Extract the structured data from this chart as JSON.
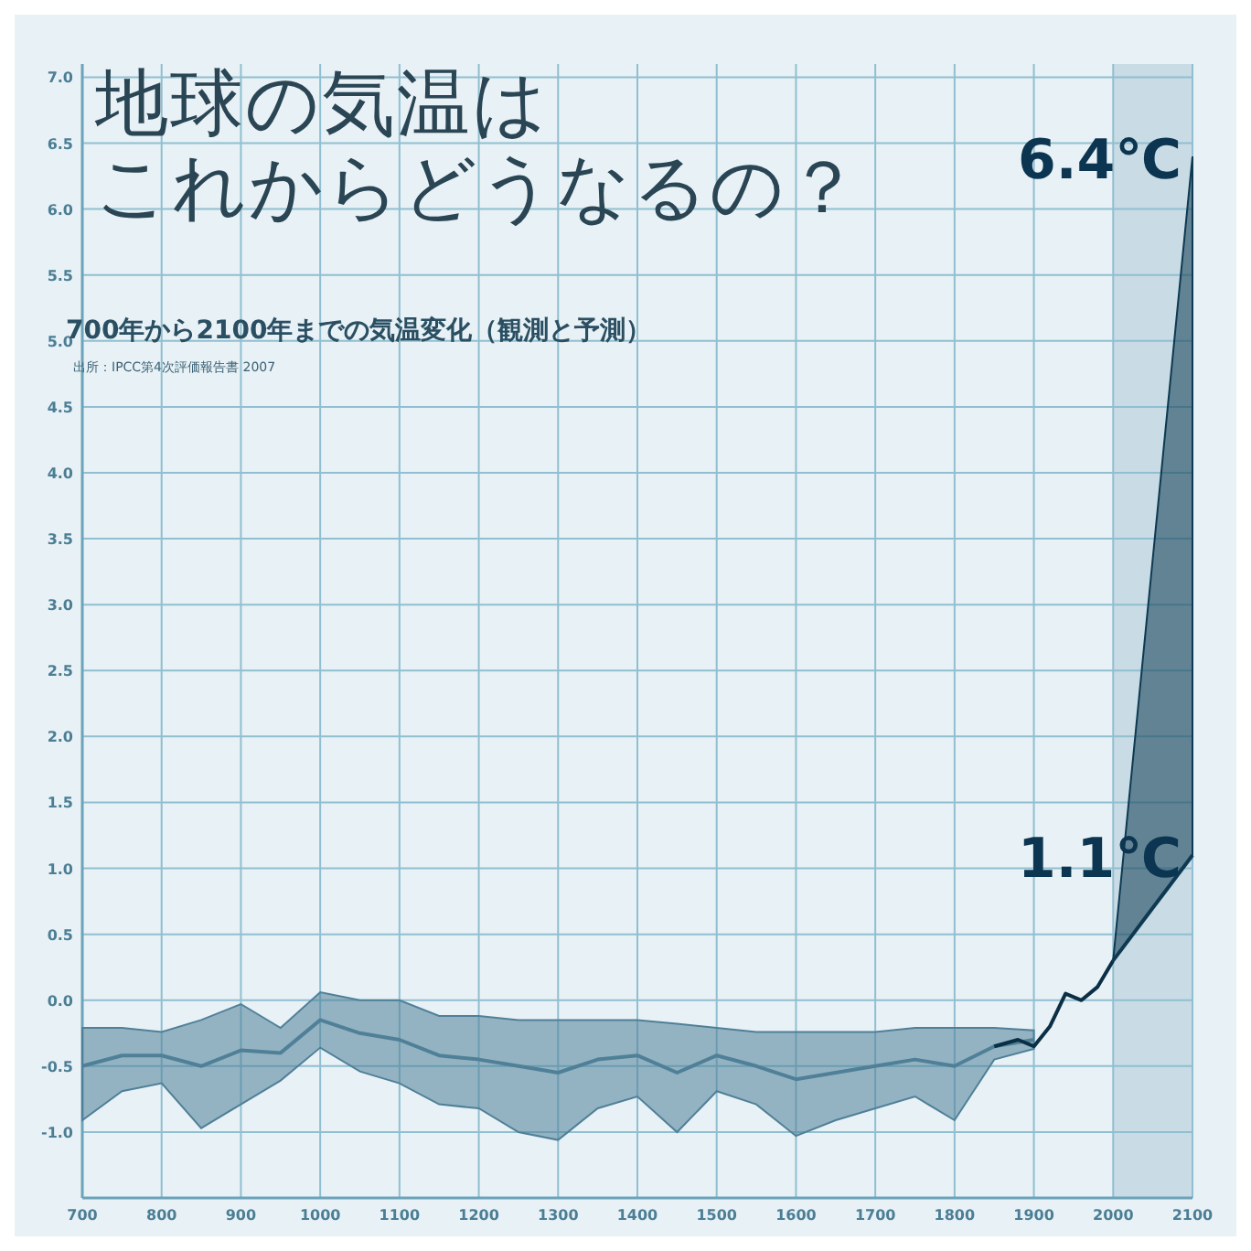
{
  "chart_data": {
    "type": "line",
    "title": "地球の気温はこれからどうなるの？",
    "subtitle": "700年から2100年までの気温変化（観測と予測）",
    "annotations": [
      {
        "text": "6.4℃",
        "x": 2100,
        "y": 6.4
      },
      {
        "text": "1.1℃",
        "x": 2100,
        "y": 1.1
      },
      "出所：IPCC第4次評価報告書 2007"
    ],
    "xlim": [
      700,
      2100
    ],
    "ylim": [
      -1.5,
      7.1
    ],
    "xticks": [
      700,
      800,
      900,
      1000,
      1100,
      1200,
      1300,
      1400,
      1500,
      1600,
      1700,
      1800,
      1900,
      2000,
      2100
    ],
    "yticks": [
      {
        "value": -1,
        "label": "-1.0"
      },
      {
        "value": -0.5,
        "label": "-0.5"
      },
      {
        "value": 0,
        "label": "0.0"
      },
      {
        "value": 0.5,
        "label": "0.5"
      },
      {
        "value": 1,
        "label": "1.0"
      },
      {
        "value": 1.5,
        "label": "1.5"
      },
      {
        "value": 2,
        "label": "2.0"
      },
      {
        "value": 2.5,
        "label": "2.5"
      },
      {
        "value": 3,
        "label": "3.0"
      },
      {
        "value": 3.5,
        "label": "3.5"
      },
      {
        "value": 4,
        "label": "4.0"
      },
      {
        "value": 4.5,
        "label": "4.5"
      },
      {
        "value": 5,
        "label": "5.0"
      },
      {
        "value": 5.5,
        "label": "5.5"
      },
      {
        "value": 6,
        "label": "6.0"
      },
      {
        "value": 6.5,
        "label": "6.5"
      },
      {
        "value": 7,
        "label": "7.0"
      }
    ],
    "grid": true,
    "bands": [
      {
        "axis": "x",
        "from": 2000,
        "to": 2100,
        "color": "#c9dbe4"
      }
    ],
    "series": [
      {
        "color": "#4f8098",
        "x": [
          700,
          750,
          800,
          850,
          900,
          950,
          1000,
          1050,
          1100,
          1150,
          1200,
          1250,
          1300,
          1350,
          1400,
          1450,
          1500,
          1550,
          1600,
          1650,
          1700,
          1750,
          1800,
          1850,
          1900
        ],
        "values": [
          -0.5,
          -0.42,
          -0.42,
          -0.5,
          -0.38,
          -0.4,
          -0.15,
          -0.25,
          -0.3,
          -0.42,
          -0.45,
          -0.5,
          -0.55,
          -0.45,
          -0.42,
          -0.55,
          -0.42,
          -0.5,
          -0.6,
          -0.55,
          -0.5,
          -0.45,
          -0.5,
          -0.35,
          -0.3
        ],
        "lower": [
          -0.91,
          -0.69,
          -0.63,
          -0.97,
          -0.79,
          -0.61,
          -0.36,
          -0.54,
          -0.63,
          -0.79,
          -0.82,
          -1.0,
          -1.06,
          -0.82,
          -0.73,
          -1.0,
          -0.69,
          -0.79,
          -1.03,
          -0.91,
          -0.82,
          -0.73,
          -0.91,
          -0.45,
          -0.37
        ],
        "upper": [
          -0.21,
          -0.21,
          -0.24,
          -0.15,
          -0.03,
          -0.21,
          0.06,
          0.0,
          0.0,
          -0.12,
          -0.12,
          -0.15,
          -0.15,
          -0.15,
          -0.15,
          -0.18,
          -0.21,
          -0.24,
          -0.24,
          -0.24,
          -0.24,
          -0.21,
          -0.21,
          -0.21,
          -0.23
        ]
      },
      {
        "color": "#0b2f45",
        "x": [
          1850,
          1880,
          1900,
          1920,
          1940,
          1960,
          1980,
          2000
        ],
        "values": [
          -0.35,
          -0.3,
          -0.35,
          -0.2,
          0.05,
          0.0,
          0.1,
          0.3
        ]
      },
      {
        "color": "#0d3a52",
        "x": [
          2000,
          2100
        ],
        "values": [
          0.3,
          1.1
        ],
        "lower": [
          0.3,
          1.1
        ],
        "upper": [
          0.3,
          6.4
        ]
      }
    ]
  }
}
